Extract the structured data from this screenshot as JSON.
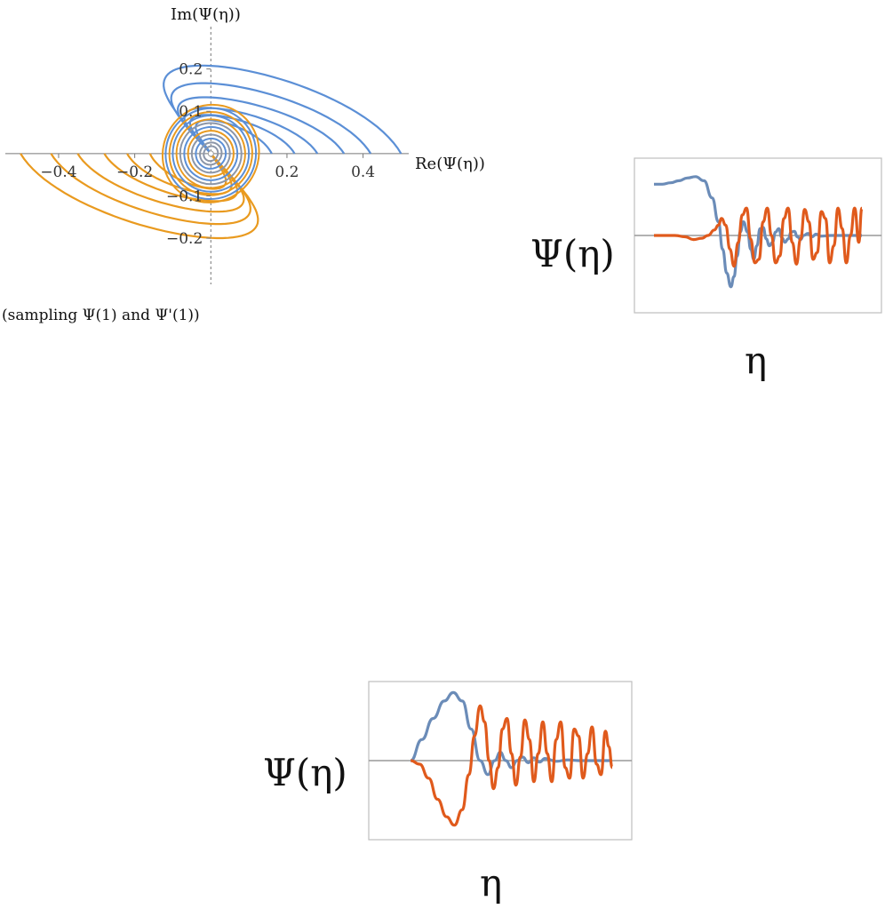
{
  "chart_data": [
    {
      "type": "line",
      "subtype": "parametric",
      "xlabel": "Re(Ψ(η))",
      "ylabel": "Im(Ψ(η))",
      "caption": "(sampling Ψ(1) and Ψ'(1))",
      "x_ticks": [
        {
          "value": -0.4,
          "label": "−0.4"
        },
        {
          "value": -0.2,
          "label": "−0.2"
        },
        {
          "value": 0.2,
          "label": "0.2"
        },
        {
          "value": 0.4,
          "label": "0.4"
        }
      ],
      "y_ticks": [
        {
          "value": 0.2,
          "label": "0.2"
        },
        {
          "value": 0.1,
          "label": "0.1"
        },
        {
          "value": -0.1,
          "label": "−0.1"
        },
        {
          "value": -0.2,
          "label": "−0.2"
        }
      ],
      "xlim": [
        -0.54,
        0.52
      ],
      "ylim": [
        -0.33,
        0.3
      ],
      "colors": {
        "blue": "#5b8fd6",
        "orange": "#e99a1f",
        "gray": "#8c96a8"
      },
      "blue_outer_loops": [
        {
          "r": 0.5,
          "peak": 0.25
        },
        {
          "r": 0.42,
          "peak": 0.2
        },
        {
          "r": 0.35,
          "peak": 0.16
        },
        {
          "r": 0.28,
          "peak": 0.13
        },
        {
          "r": 0.22,
          "peak": 0.11
        },
        {
          "r": 0.16,
          "peak": 0.095
        }
      ],
      "orange_outer_loops": [
        {
          "r": -0.5,
          "peak": -0.24
        },
        {
          "r": -0.42,
          "peak": -0.2
        },
        {
          "r": -0.35,
          "peak": -0.165
        },
        {
          "r": -0.28,
          "peak": -0.135
        },
        {
          "r": -0.22,
          "peak": -0.115
        },
        {
          "r": -0.16,
          "peak": -0.1
        }
      ],
      "inner_ellipses": [
        {
          "a": 0.13,
          "b": 0.09,
          "color": "orange"
        },
        {
          "a": 0.12,
          "b": 0.085,
          "color": "blue"
        },
        {
          "a": 0.11,
          "b": 0.078,
          "color": "orange"
        },
        {
          "a": 0.1,
          "b": 0.072,
          "color": "blue"
        },
        {
          "a": 0.09,
          "b": 0.065,
          "color": "orange"
        },
        {
          "a": 0.08,
          "b": 0.058,
          "color": "gray"
        },
        {
          "a": 0.07,
          "b": 0.05,
          "color": "blue"
        },
        {
          "a": 0.06,
          "b": 0.043,
          "color": "orange"
        },
        {
          "a": 0.05,
          "b": 0.036,
          "color": "gray"
        },
        {
          "a": 0.04,
          "b": 0.028,
          "color": "blue"
        },
        {
          "a": 0.03,
          "b": 0.02,
          "color": "gray"
        },
        {
          "a": 0.02,
          "b": 0.013,
          "color": "gray"
        }
      ]
    },
    {
      "type": "line",
      "xlabel": "η",
      "ylabel": "Ψ(η)",
      "xlim": [
        0,
        10
      ],
      "ylim": [
        -1,
        1
      ],
      "series": [
        {
          "color": "#6b8cb8",
          "values": [
            [
              0.0,
              0.75
            ],
            [
              0.4,
              0.75
            ],
            [
              0.8,
              0.77
            ],
            [
              1.2,
              0.8
            ],
            [
              1.6,
              0.84
            ],
            [
              2.0,
              0.86
            ],
            [
              2.4,
              0.8
            ],
            [
              2.8,
              0.55
            ],
            [
              3.1,
              0.2
            ],
            [
              3.3,
              -0.2
            ],
            [
              3.5,
              -0.55
            ],
            [
              3.7,
              -0.75
            ],
            [
              3.85,
              -0.6
            ],
            [
              4.0,
              -0.3
            ],
            [
              4.15,
              0.05
            ],
            [
              4.3,
              0.2
            ],
            [
              4.5,
              0.05
            ],
            [
              4.65,
              -0.2
            ],
            [
              4.8,
              -0.35
            ],
            [
              4.95,
              -0.15
            ],
            [
              5.1,
              0.1
            ],
            [
              5.25,
              0.12
            ],
            [
              5.4,
              -0.05
            ],
            [
              5.55,
              -0.15
            ],
            [
              5.7,
              -0.1
            ],
            [
              5.85,
              0.05
            ],
            [
              6.0,
              0.1
            ],
            [
              6.15,
              -0.03
            ],
            [
              6.3,
              -0.1
            ],
            [
              6.45,
              -0.05
            ],
            [
              6.6,
              0.05
            ],
            [
              6.75,
              0.06
            ],
            [
              6.9,
              -0.02
            ],
            [
              7.05,
              -0.06
            ],
            [
              7.2,
              0.0
            ],
            [
              7.4,
              0.03
            ],
            [
              7.6,
              -0.02
            ],
            [
              7.8,
              0.02
            ],
            [
              8.0,
              -0.01
            ],
            [
              8.5,
              0.0
            ],
            [
              9.0,
              0.0
            ],
            [
              9.5,
              0.0
            ],
            [
              10.0,
              0.0
            ]
          ]
        },
        {
          "color": "#e05a1c",
          "values": [
            [
              0.0,
              0.0
            ],
            [
              0.5,
              0.0
            ],
            [
              1.0,
              0.0
            ],
            [
              1.5,
              -0.02
            ],
            [
              1.9,
              -0.06
            ],
            [
              2.3,
              -0.04
            ],
            [
              2.6,
              0.0
            ],
            [
              2.9,
              0.08
            ],
            [
              3.1,
              0.15
            ],
            [
              3.25,
              0.25
            ],
            [
              3.45,
              0.15
            ],
            [
              3.65,
              -0.2
            ],
            [
              3.85,
              -0.45
            ],
            [
              4.05,
              -0.1
            ],
            [
              4.25,
              0.3
            ],
            [
              4.45,
              0.4
            ],
            [
              4.65,
              -0.05
            ],
            [
              4.85,
              -0.4
            ],
            [
              5.05,
              -0.35
            ],
            [
              5.25,
              0.2
            ],
            [
              5.45,
              0.4
            ],
            [
              5.65,
              0.0
            ],
            [
              5.85,
              -0.4
            ],
            [
              6.05,
              -0.3
            ],
            [
              6.25,
              0.25
            ],
            [
              6.45,
              0.4
            ],
            [
              6.65,
              -0.1
            ],
            [
              6.85,
              -0.42
            ],
            [
              7.05,
              -0.05
            ],
            [
              7.25,
              0.38
            ],
            [
              7.45,
              0.2
            ],
            [
              7.65,
              -0.35
            ],
            [
              7.85,
              -0.25
            ],
            [
              8.05,
              0.35
            ],
            [
              8.25,
              0.25
            ],
            [
              8.45,
              -0.4
            ],
            [
              8.65,
              -0.15
            ],
            [
              8.85,
              0.4
            ],
            [
              9.05,
              0.1
            ],
            [
              9.25,
              -0.4
            ],
            [
              9.45,
              0.0
            ],
            [
              9.65,
              0.4
            ],
            [
              9.85,
              -0.1
            ],
            [
              10.0,
              0.4
            ]
          ]
        }
      ]
    },
    {
      "type": "line",
      "xlabel": "η",
      "ylabel": "Ψ(η)",
      "xlim": [
        0,
        10
      ],
      "ylim": [
        -1,
        1
      ],
      "series": [
        {
          "color": "#6b8cb8",
          "values": [
            [
              1.0,
              0.0
            ],
            [
              1.5,
              0.3
            ],
            [
              2.0,
              0.6
            ],
            [
              2.5,
              0.85
            ],
            [
              2.9,
              0.97
            ],
            [
              3.3,
              0.85
            ],
            [
              3.7,
              0.45
            ],
            [
              4.1,
              0.0
            ],
            [
              4.45,
              -0.2
            ],
            [
              4.75,
              0.0
            ],
            [
              5.0,
              0.12
            ],
            [
              5.25,
              0.0
            ],
            [
              5.5,
              -0.1
            ],
            [
              5.75,
              0.0
            ],
            [
              6.0,
              0.05
            ],
            [
              6.25,
              -0.03
            ],
            [
              6.5,
              0.04
            ],
            [
              6.75,
              -0.02
            ],
            [
              7.0,
              0.03
            ],
            [
              7.5,
              -0.01
            ],
            [
              8.0,
              0.01
            ],
            [
              8.5,
              0.0
            ],
            [
              9.0,
              0.0
            ],
            [
              9.5,
              0.0
            ],
            [
              10.0,
              0.0
            ]
          ]
        },
        {
          "color": "#e05a1c",
          "values": [
            [
              1.0,
              0.0
            ],
            [
              1.4,
              -0.05
            ],
            [
              1.8,
              -0.25
            ],
            [
              2.2,
              -0.55
            ],
            [
              2.6,
              -0.8
            ],
            [
              2.95,
              -0.92
            ],
            [
              3.3,
              -0.7
            ],
            [
              3.6,
              -0.2
            ],
            [
              3.85,
              0.35
            ],
            [
              4.1,
              0.78
            ],
            [
              4.3,
              0.55
            ],
            [
              4.5,
              0.0
            ],
            [
              4.7,
              -0.4
            ],
            [
              4.9,
              -0.1
            ],
            [
              5.1,
              0.45
            ],
            [
              5.3,
              0.6
            ],
            [
              5.5,
              0.1
            ],
            [
              5.7,
              -0.35
            ],
            [
              5.9,
              0.05
            ],
            [
              6.1,
              0.58
            ],
            [
              6.3,
              0.3
            ],
            [
              6.5,
              -0.3
            ],
            [
              6.7,
              0.1
            ],
            [
              6.9,
              0.55
            ],
            [
              7.1,
              0.1
            ],
            [
              7.3,
              -0.3
            ],
            [
              7.5,
              0.3
            ],
            [
              7.7,
              0.55
            ],
            [
              7.9,
              -0.1
            ],
            [
              8.1,
              -0.25
            ],
            [
              8.3,
              0.45
            ],
            [
              8.5,
              0.35
            ],
            [
              8.7,
              -0.25
            ],
            [
              8.9,
              0.1
            ],
            [
              9.1,
              0.48
            ],
            [
              9.3,
              -0.05
            ],
            [
              9.5,
              -0.2
            ],
            [
              9.7,
              0.42
            ],
            [
              9.85,
              0.2
            ],
            [
              10.0,
              -0.1
            ]
          ]
        }
      ]
    }
  ]
}
